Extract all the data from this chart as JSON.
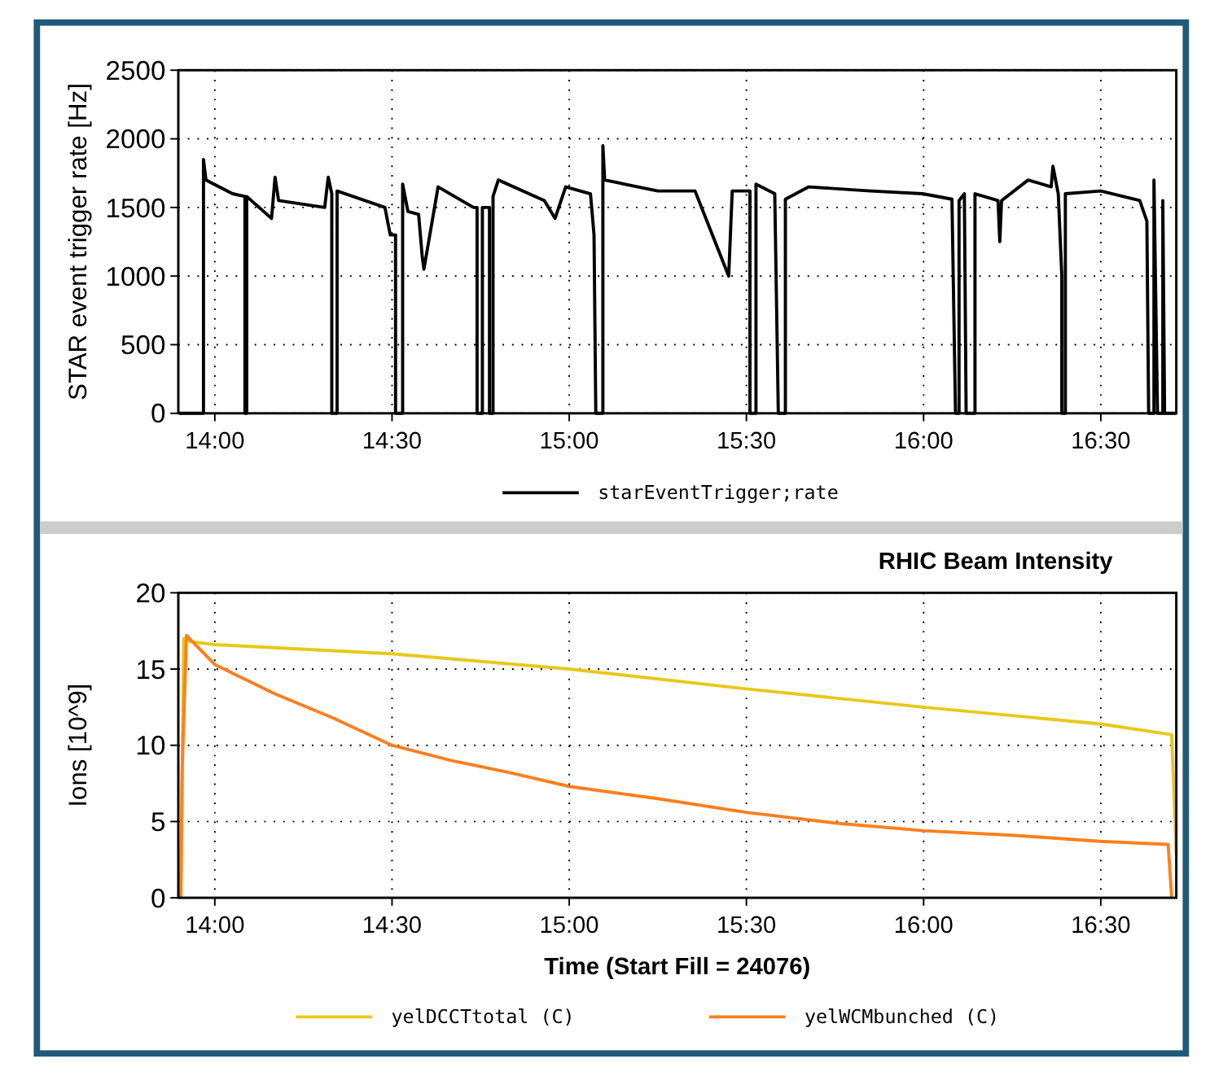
{
  "chart_data": [
    {
      "type": "line",
      "ylabel": "STAR event trigger rate [Hz]",
      "xlim": [
        13.897,
        16.713
      ],
      "xticks": [
        {
          "value": 14,
          "label": "14:00"
        },
        {
          "value": 14.5,
          "label": "14:30"
        },
        {
          "value": 15,
          "label": "15:00"
        },
        {
          "value": 15.5,
          "label": "15:30"
        },
        {
          "value": 16,
          "label": "16:00"
        },
        {
          "value": 16.5,
          "label": "16:30"
        }
      ],
      "ylim": [
        0,
        2500
      ],
      "yticks": [
        0,
        500,
        1000,
        1500,
        2000,
        2500
      ],
      "grid": true,
      "legend": "bottom",
      "line_style": "solid",
      "series": [
        {
          "name": "starEventTrigger;rate",
          "color": "#000000",
          "x": [
            13.9,
            13.968,
            13.968,
            13.975,
            14.05,
            14.085,
            14.085,
            14.09,
            14.09,
            14.16,
            14.17,
            14.18,
            14.31,
            14.32,
            14.33,
            14.33,
            14.345,
            14.345,
            14.48,
            14.495,
            14.51,
            14.51,
            14.53,
            14.53,
            14.545,
            14.575,
            14.585,
            14.59,
            14.6,
            14.63,
            14.73,
            14.74,
            14.74,
            14.755,
            14.755,
            14.775,
            14.775,
            14.785,
            14.785,
            14.8,
            14.93,
            14.96,
            14.99,
            15.06,
            15.07,
            15.075,
            15.095,
            15.095,
            15.1,
            15.25,
            15.355,
            15.45,
            15.46,
            15.495,
            15.51,
            15.51,
            15.527,
            15.527,
            15.58,
            15.59,
            15.61,
            15.61,
            15.676,
            15.85,
            15.997,
            16.08,
            16.09,
            16.1,
            16.1,
            16.115,
            16.12,
            16.145,
            16.145,
            16.21,
            16.215,
            16.22,
            16.295,
            16.36,
            16.365,
            16.38,
            16.39,
            16.39,
            16.4,
            16.4,
            16.5,
            16.61,
            16.63,
            16.635,
            16.65,
            16.65,
            16.66,
            16.675,
            16.675,
            16.68,
            16.713
          ],
          "values": [
            0,
            0,
            1850,
            1700,
            1600,
            1580,
            0,
            0,
            1580,
            1420,
            1720,
            1550,
            1500,
            1720,
            1600,
            0,
            0,
            1620,
            1500,
            1300,
            1300,
            0,
            0,
            1670,
            1470,
            1450,
            1150,
            1050,
            1200,
            1650,
            1500,
            1500,
            0,
            0,
            1500,
            1500,
            0,
            0,
            1580,
            1700,
            1550,
            1420,
            1650,
            1600,
            1300,
            0,
            0,
            1950,
            1700,
            1620,
            1620,
            1000,
            1620,
            1620,
            1620,
            0,
            0,
            1670,
            1600,
            0,
            0,
            1560,
            1650,
            1620,
            1600,
            1560,
            0,
            0,
            1550,
            1600,
            0,
            0,
            1600,
            1550,
            1250,
            1550,
            1700,
            1650,
            1800,
            1600,
            1000,
            0,
            0,
            1600,
            1620,
            1550,
            1400,
            0,
            0,
            1700,
            0,
            0,
            1550,
            0,
            0
          ]
        }
      ]
    },
    {
      "type": "line",
      "title": "RHIC Beam Intensity",
      "xlabel": "Time (Start Fill = 24076)",
      "ylabel": "Ions [10^9]",
      "xlim": [
        13.897,
        16.713
      ],
      "xticks": [
        {
          "value": 14,
          "label": "14:00"
        },
        {
          "value": 14.5,
          "label": "14:30"
        },
        {
          "value": 15,
          "label": "15:00"
        },
        {
          "value": 15.5,
          "label": "15:30"
        },
        {
          "value": 16,
          "label": "16:00"
        },
        {
          "value": 16.5,
          "label": "16:30"
        }
      ],
      "ylim": [
        0,
        20
      ],
      "yticks": [
        0,
        5,
        10,
        15,
        20
      ],
      "grid": true,
      "legend": "bottom",
      "line_style": "solid",
      "series": [
        {
          "name": "yelDCCTtotal (C)",
          "color": "#e8c81a",
          "x": [
            13.904,
            13.912,
            13.93,
            14.0,
            14.5,
            15.0,
            15.5,
            16.0,
            16.5,
            16.7,
            16.713
          ],
          "values": [
            0,
            17,
            16.8,
            16.6,
            16.0,
            15.0,
            13.7,
            12.5,
            11.4,
            10.7,
            2.8
          ]
        },
        {
          "name": "yelWCMbunched (C)",
          "color": "#ff7f1e",
          "x": [
            13.904,
            13.908,
            13.92,
            14.0,
            14.167,
            14.333,
            14.5,
            14.667,
            14.833,
            15.0,
            15.25,
            15.5,
            15.75,
            16.0,
            16.25,
            16.5,
            16.69,
            16.7
          ],
          "values": [
            0,
            8.5,
            17.2,
            15.3,
            13.4,
            11.8,
            10.0,
            9.0,
            8.2,
            7.3,
            6.5,
            5.6,
            4.9,
            4.4,
            4.1,
            3.7,
            3.5,
            0
          ]
        }
      ]
    }
  ]
}
